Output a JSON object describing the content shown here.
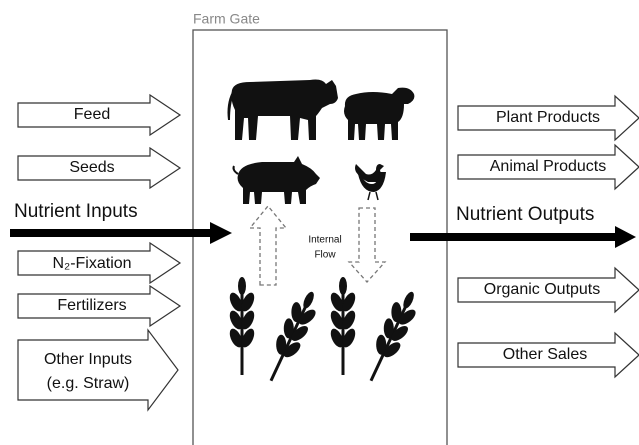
{
  "farm_gate": "Farm Gate",
  "nutrient_inputs": "Nutrient Inputs",
  "nutrient_outputs": "Nutrient Outputs",
  "internal_flow": [
    "Internal",
    "Flow"
  ],
  "inputs": [
    {
      "lines": [
        "Feed"
      ]
    },
    {
      "lines": [
        "Seeds"
      ]
    },
    {
      "lines": [
        "N₂-Fixation"
      ]
    },
    {
      "lines": [
        "Fertilizers"
      ]
    },
    {
      "lines": [
        "Other Inputs",
        "(e.g. Straw)"
      ]
    }
  ],
  "outputs": [
    {
      "lines": [
        "Plant Products"
      ]
    },
    {
      "lines": [
        "Animal Products"
      ]
    },
    {
      "lines": [
        "Organic Outputs"
      ]
    },
    {
      "lines": [
        "Other Sales"
      ]
    }
  ]
}
